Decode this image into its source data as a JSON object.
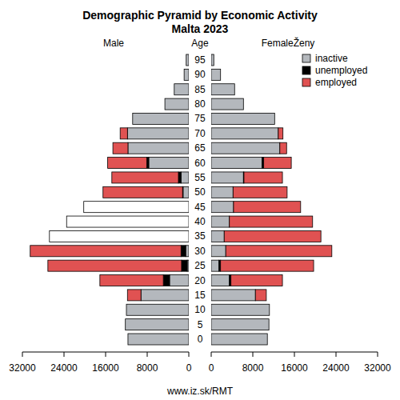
{
  "title": "Demographic Pyramid by Economic Activity",
  "subtitle": "Malta 2023",
  "source": "www.iz.sk/RMT",
  "chart_data": [
    {
      "type": "bar",
      "orientation": "horizontal",
      "stacked": true,
      "title": "Male",
      "y_label": "Age",
      "categories": [
        "0",
        "5",
        "10",
        "15",
        "20",
        "25",
        "30",
        "35",
        "40",
        "45",
        "50",
        "55",
        "60",
        "65",
        "70",
        "75",
        "80",
        "85",
        "90",
        "95"
      ],
      "xlim": [
        32000,
        0
      ],
      "xticks": [
        32000,
        24000,
        16000,
        8000,
        0
      ],
      "series": [
        {
          "color": "#b4b8bd",
          "colors": [
            "#b4b8bd",
            "#b4b8bd",
            "#b4b8bd",
            "#b4b8bd",
            "#b4b8bd",
            "#b4b8bd",
            "#b4b8bd",
            "#ffffff",
            "#ffffff",
            "#ffffff",
            "#b4b8bd",
            "#b4b8bd",
            "#b4b8bd",
            "#b4b8bd",
            "#b4b8bd",
            "#b4b8bd",
            "#b4b8bd",
            "#b4b8bd",
            "#b4b8bd",
            "#b4b8bd"
          ],
          "values": [
            11700,
            12200,
            12000,
            9200,
            3700,
            300,
            600,
            26800,
            23500,
            20200,
            1100,
            1500,
            7700,
            11700,
            11800,
            10800,
            4600,
            2800,
            900,
            500
          ]
        },
        {
          "color": "#000000",
          "values": [
            0,
            0,
            0,
            0,
            1200,
            1100,
            900,
            0,
            0,
            0,
            100,
            500,
            400,
            0,
            0,
            0,
            0,
            0,
            0,
            0
          ]
        },
        {
          "color": "#e05252",
          "values": [
            0,
            0,
            0,
            2600,
            12200,
            25700,
            29000,
            0,
            0,
            0,
            15300,
            12800,
            7500,
            2900,
            1400,
            0,
            0,
            0,
            0,
            0
          ]
        }
      ]
    },
    {
      "type": "bar",
      "orientation": "horizontal",
      "stacked": true,
      "title": "FemaleŽeny",
      "legend": "top-right",
      "xlim": [
        0,
        32000
      ],
      "xticks": [
        0,
        8000,
        16000,
        24000,
        32000
      ],
      "series": [
        {
          "name": "inactive",
          "color": "#b4b8bd",
          "values": [
            10800,
            11100,
            11200,
            8500,
            3500,
            1500,
            2800,
            2500,
            3500,
            4300,
            4200,
            6200,
            9800,
            13200,
            12900,
            12200,
            6200,
            4500,
            1800,
            500
          ]
        },
        {
          "name": "unemployed",
          "color": "#000000",
          "values": [
            0,
            0,
            0,
            0,
            300,
            300,
            0,
            0,
            0,
            0,
            0,
            100,
            300,
            0,
            0,
            0,
            0,
            0,
            0,
            0
          ]
        },
        {
          "name": "employed",
          "color": "#e05252",
          "values": [
            0,
            0,
            0,
            2100,
            9900,
            17900,
            20400,
            18600,
            16000,
            12900,
            10400,
            7400,
            5300,
            1300,
            900,
            0,
            0,
            0,
            0,
            0
          ]
        }
      ]
    }
  ]
}
